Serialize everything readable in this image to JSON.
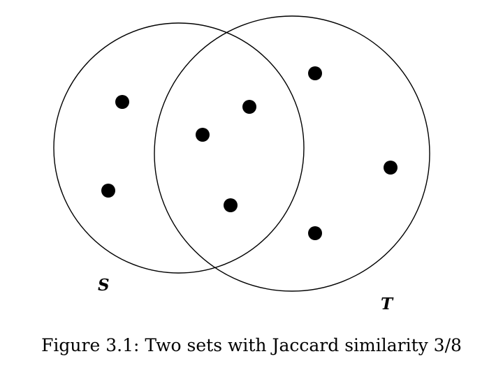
{
  "diagram": {
    "sets": [
      {
        "id": "S",
        "label": "S",
        "elements": [
          "s1",
          "s2",
          "i1",
          "i2",
          "i3"
        ]
      },
      {
        "id": "T",
        "label": "T",
        "elements": [
          "i1",
          "i2",
          "i3",
          "t1",
          "t2",
          "t3"
        ]
      }
    ],
    "element_count": {
      "only_S": 2,
      "intersection": 3,
      "only_T": 3,
      "union": 8
    }
  },
  "caption": "Figure 3.1: Two sets with Jaccard similarity 3/8"
}
